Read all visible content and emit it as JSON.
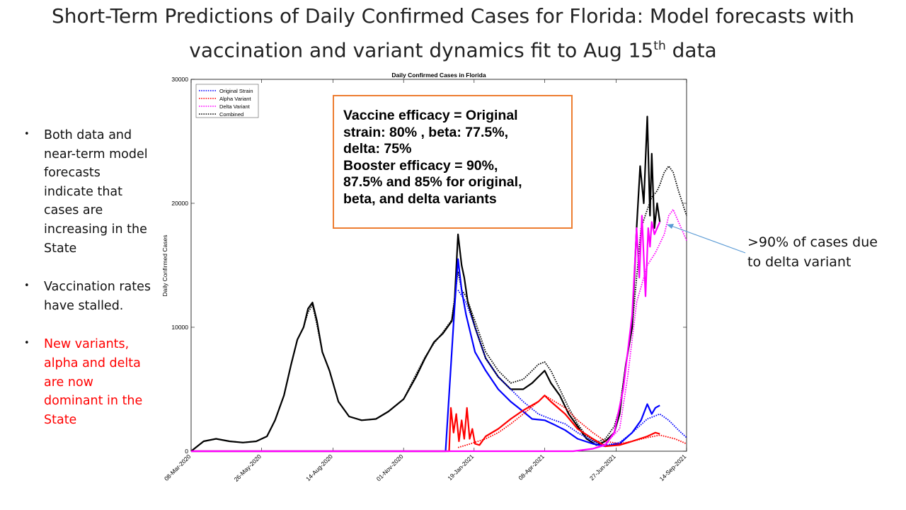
{
  "slide": {
    "title_line1": "Short-Term Predictions of Daily Confirmed Cases for Florida: Model forecasts with",
    "title_line2_pre": "vaccination and variant dynamics fit to Aug 15",
    "title_sup": "th",
    "title_line2_post": " data",
    "bullets": [
      {
        "text": "Both data and near-term model forecasts indicate that cases are increasing in the State",
        "color": "#111111"
      },
      {
        "text": "Vaccination rates have stalled.",
        "color": "#111111"
      },
      {
        "text": "New variants, alpha and delta are now dominant in the State",
        "color": "#ff0000"
      }
    ],
    "bullet_symbol": "•",
    "infobox": {
      "line1": "Vaccine efficacy = Original",
      "line2": "strain: 80% , beta: 77.5%,",
      "line3": "delta: 75%",
      "line4": "Booster efficacy = 90%,",
      "line5": "87.5% and 85% for original,",
      "line6": "beta, and delta variants"
    },
    "annotation": {
      "line1": ">90% of cases due",
      "line2": "to delta variant"
    }
  },
  "chart_data": {
    "type": "line",
    "title": "Daily Confirmed Cases in Florida",
    "xlabel": "",
    "ylabel": "Daily Confirmed Cases",
    "x_range": [
      "2020-03-08",
      "2021-09-14"
    ],
    "ylim": [
      0,
      30000
    ],
    "x_ticks": [
      "08-Mar-2020",
      "26-May-2020",
      "14-Aug-2020",
      "01-Nov-2020",
      "19-Jan-2021",
      "08-Apr-2021",
      "27-Jun-2021",
      "14-Sep-2021"
    ],
    "x_tick_dates": [
      "2020-03-08",
      "2020-05-26",
      "2020-08-14",
      "2020-11-01",
      "2021-01-19",
      "2021-04-08",
      "2021-06-27",
      "2021-09-14"
    ],
    "y_ticks": [
      0,
      10000,
      20000,
      30000
    ],
    "grid": false,
    "legend_position": "top-left",
    "legend": [
      {
        "name": "Original Strain",
        "color": "#0000ff"
      },
      {
        "name": "Alpha Variant",
        "color": "#ff0000"
      },
      {
        "name": "Delta Variant",
        "color": "#ff00ff"
      },
      {
        "name": "Combined",
        "color": "#000000"
      }
    ],
    "series": [
      {
        "name": "Combined data",
        "color": "#000000",
        "style": "solid",
        "width": 2.2,
        "x": [
          "2020-03-08",
          "2020-03-22",
          "2020-04-05",
          "2020-04-20",
          "2020-05-05",
          "2020-05-20",
          "2020-06-01",
          "2020-06-10",
          "2020-06-20",
          "2020-06-28",
          "2020-07-05",
          "2020-07-12",
          "2020-07-17",
          "2020-07-22",
          "2020-07-27",
          "2020-08-02",
          "2020-08-10",
          "2020-08-20",
          "2020-09-01",
          "2020-09-15",
          "2020-10-01",
          "2020-10-15",
          "2020-11-01",
          "2020-11-15",
          "2020-11-25",
          "2020-12-05",
          "2020-12-15",
          "2020-12-25",
          "2020-12-28",
          "2021-01-01",
          "2021-01-05",
          "2021-01-08",
          "2021-01-12",
          "2021-01-20",
          "2021-02-01",
          "2021-02-15",
          "2021-03-01",
          "2021-03-15",
          "2021-03-25",
          "2021-04-01",
          "2021-04-08",
          "2021-04-15",
          "2021-04-25",
          "2021-05-05",
          "2021-05-15",
          "2021-05-25",
          "2021-06-05",
          "2021-06-15",
          "2021-06-25",
          "2021-07-01",
          "2021-07-08",
          "2021-07-15",
          "2021-07-20",
          "2021-07-24",
          "2021-07-28",
          "2021-08-01",
          "2021-08-04",
          "2021-08-06",
          "2021-08-09",
          "2021-08-12",
          "2021-08-15"
        ],
        "y": [
          0,
          800,
          1000,
          800,
          700,
          800,
          1200,
          2500,
          4500,
          7000,
          9000,
          10000,
          11500,
          12000,
          10500,
          8000,
          6500,
          4000,
          2800,
          2500,
          2600,
          3200,
          4200,
          6000,
          7500,
          8800,
          9500,
          10500,
          12000,
          17500,
          15000,
          14000,
          12000,
          10000,
          7500,
          6000,
          5000,
          5000,
          5500,
          6000,
          6500,
          5500,
          4500,
          3000,
          2000,
          1000,
          500,
          800,
          1500,
          3000,
          7000,
          10000,
          18000,
          23000,
          20000,
          27000,
          19000,
          24000,
          18000,
          20000,
          18500
        ]
      },
      {
        "name": "Combined model",
        "color": "#000000",
        "style": "dotted",
        "width": 1.8,
        "x": [
          "2020-03-08",
          "2020-03-22",
          "2020-04-05",
          "2020-04-20",
          "2020-05-05",
          "2020-05-20",
          "2020-06-01",
          "2020-06-10",
          "2020-06-20",
          "2020-06-28",
          "2020-07-05",
          "2020-07-12",
          "2020-07-17",
          "2020-07-22",
          "2020-07-27",
          "2020-08-02",
          "2020-08-10",
          "2020-08-20",
          "2020-09-01",
          "2020-09-15",
          "2020-10-01",
          "2020-10-15",
          "2020-11-01",
          "2020-11-15",
          "2020-11-25",
          "2020-12-05",
          "2020-12-15",
          "2020-12-25",
          "2021-01-01",
          "2021-01-05",
          "2021-01-10",
          "2021-01-20",
          "2021-02-01",
          "2021-02-15",
          "2021-03-01",
          "2021-03-15",
          "2021-03-25",
          "2021-04-01",
          "2021-04-08",
          "2021-04-15",
          "2021-04-25",
          "2021-05-05",
          "2021-05-15",
          "2021-05-25",
          "2021-06-05",
          "2021-06-15",
          "2021-06-25",
          "2021-07-01",
          "2021-07-08",
          "2021-07-15",
          "2021-07-20",
          "2021-07-25",
          "2021-08-01",
          "2021-08-06",
          "2021-08-12",
          "2021-08-15",
          "2021-08-20",
          "2021-08-25",
          "2021-08-30",
          "2021-09-05",
          "2021-09-14"
        ],
        "y": [
          0,
          800,
          1000,
          800,
          700,
          800,
          1200,
          2500,
          4500,
          7000,
          9000,
          10000,
          11200,
          11800,
          10200,
          8000,
          6500,
          4000,
          2800,
          2500,
          2600,
          3200,
          4200,
          6200,
          7600,
          8700,
          9600,
          10600,
          14500,
          13000,
          12500,
          10500,
          8000,
          6500,
          5500,
          5800,
          6500,
          7000,
          7200,
          6500,
          5000,
          3500,
          2200,
          1200,
          700,
          1000,
          2000,
          3500,
          7000,
          10000,
          14000,
          18000,
          19500,
          20500,
          21000,
          21500,
          22500,
          23000,
          22500,
          21000,
          19000
        ]
      },
      {
        "name": "Original Strain data",
        "color": "#0000ff",
        "style": "solid",
        "width": 2.2,
        "x": [
          "2020-03-08",
          "2020-12-18",
          "2020-12-28",
          "2021-01-01",
          "2021-01-05",
          "2021-01-10",
          "2021-01-20",
          "2021-02-01",
          "2021-02-15",
          "2021-03-01",
          "2021-03-15",
          "2021-03-25",
          "2021-04-08",
          "2021-04-20",
          "2021-05-01",
          "2021-05-15",
          "2021-06-01",
          "2021-06-15",
          "2021-07-01",
          "2021-07-15",
          "2021-07-25",
          "2021-08-01",
          "2021-08-06",
          "2021-08-10",
          "2021-08-15"
        ],
        "y": [
          0,
          0,
          11500,
          15500,
          13000,
          11000,
          8000,
          6500,
          5000,
          4000,
          3200,
          2600,
          2500,
          2100,
          1700,
          1000,
          600,
          400,
          600,
          1500,
          2500,
          3800,
          3000,
          3500,
          3700
        ]
      },
      {
        "name": "Original Strain model",
        "color": "#0000ff",
        "style": "dotted",
        "width": 1.8,
        "x": [
          "2021-01-01",
          "2021-01-10",
          "2021-01-20",
          "2021-02-01",
          "2021-02-15",
          "2021-03-01",
          "2021-03-15",
          "2021-04-01",
          "2021-04-15",
          "2021-05-01",
          "2021-05-15",
          "2021-06-01",
          "2021-06-15",
          "2021-07-01",
          "2021-07-15",
          "2021-08-01",
          "2021-08-15",
          "2021-08-25",
          "2021-09-05",
          "2021-09-14"
        ],
        "y": [
          13000,
          12000,
          10000,
          7500,
          6000,
          5000,
          4000,
          3000,
          2600,
          2200,
          1500,
          800,
          500,
          700,
          1500,
          2600,
          3000,
          2500,
          1700,
          1100
        ]
      },
      {
        "name": "Alpha Variant data",
        "color": "#ff0000",
        "style": "solid",
        "width": 2.2,
        "x": [
          "2020-03-08",
          "2020-12-22",
          "2020-12-24",
          "2020-12-27",
          "2020-12-30",
          "2021-01-02",
          "2021-01-05",
          "2021-01-08",
          "2021-01-11",
          "2021-01-14",
          "2021-01-17",
          "2021-01-20",
          "2021-01-25",
          "2021-02-01",
          "2021-02-15",
          "2021-03-01",
          "2021-03-15",
          "2021-04-01",
          "2021-04-08",
          "2021-04-15",
          "2021-05-01",
          "2021-05-15",
          "2021-06-01",
          "2021-06-15",
          "2021-07-01",
          "2021-07-15",
          "2021-08-01",
          "2021-08-10",
          "2021-08-15"
        ],
        "y": [
          0,
          0,
          3500,
          1500,
          3000,
          800,
          2500,
          1000,
          3500,
          1000,
          1800,
          600,
          500,
          1200,
          1800,
          2600,
          3300,
          4000,
          4500,
          4000,
          3000,
          1800,
          1000,
          400,
          500,
          800,
          1200,
          1500,
          1400
        ]
      },
      {
        "name": "Alpha Variant model",
        "color": "#ff0000",
        "style": "dotted",
        "width": 1.8,
        "x": [
          "2021-01-01",
          "2021-01-15",
          "2021-02-01",
          "2021-02-15",
          "2021-03-01",
          "2021-03-15",
          "2021-04-01",
          "2021-04-08",
          "2021-04-15",
          "2021-05-01",
          "2021-05-15",
          "2021-06-01",
          "2021-06-15",
          "2021-07-01",
          "2021-07-15",
          "2021-08-01",
          "2021-08-15",
          "2021-09-01",
          "2021-09-14"
        ],
        "y": [
          300,
          600,
          1000,
          1500,
          2200,
          3000,
          4000,
          4500,
          4200,
          3500,
          2500,
          1500,
          800,
          600,
          800,
          1100,
          1300,
          1000,
          600
        ]
      },
      {
        "name": "Delta Variant data",
        "color": "#ff00ff",
        "style": "solid",
        "width": 2.2,
        "x": [
          "2020-03-08",
          "2021-05-10",
          "2021-06-01",
          "2021-06-15",
          "2021-06-25",
          "2021-07-05",
          "2021-07-10",
          "2021-07-15",
          "2021-07-18",
          "2021-07-20",
          "2021-07-23",
          "2021-07-26",
          "2021-07-30",
          "2021-08-02",
          "2021-08-04",
          "2021-08-06",
          "2021-08-09",
          "2021-08-12",
          "2021-08-15"
        ],
        "y": [
          0,
          0,
          200,
          500,
          1500,
          5000,
          8000,
          11000,
          15000,
          18000,
          14000,
          19000,
          12500,
          18000,
          16500,
          18500,
          17500,
          18000,
          18500
        ]
      },
      {
        "name": "Delta Variant model",
        "color": "#ff00ff",
        "style": "dotted",
        "width": 1.8,
        "x": [
          "2021-05-10",
          "2021-06-01",
          "2021-06-15",
          "2021-07-01",
          "2021-07-10",
          "2021-07-20",
          "2021-08-01",
          "2021-08-10",
          "2021-08-20",
          "2021-08-25",
          "2021-08-30",
          "2021-09-05",
          "2021-09-14"
        ],
        "y": [
          0,
          200,
          600,
          1800,
          6000,
          12000,
          15000,
          16000,
          17500,
          19000,
          19500,
          18500,
          17000
        ]
      }
    ]
  }
}
